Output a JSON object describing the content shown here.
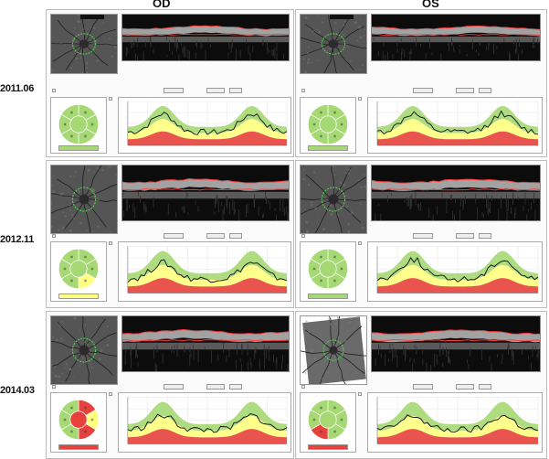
{
  "headers": {
    "od": "OD",
    "os": "OS"
  },
  "dates": [
    "2011.06",
    "2012.11",
    "2014.03"
  ],
  "colors": {
    "normal": "#a6d873",
    "borderline": "#ffff80",
    "outside": "#e8413b",
    "trace": "#111111",
    "panel_border": "#bcbcbc"
  },
  "sessions": [
    {
      "date": "2011.06",
      "od": {
        "classification": "within-normal",
        "grid": [
          "normal",
          "normal",
          "normal",
          "normal",
          "normal",
          "normal",
          "normal"
        ]
      },
      "os": {
        "classification": "within-normal",
        "grid": [
          "normal",
          "normal",
          "normal",
          "normal",
          "normal",
          "normal",
          "normal"
        ]
      }
    },
    {
      "date": "2012.11",
      "od": {
        "classification": "borderline",
        "grid": [
          "normal",
          "normal",
          "borderline",
          "normal",
          "normal",
          "normal",
          "normal"
        ]
      },
      "os": {
        "classification": "within-normal",
        "grid": [
          "normal",
          "normal",
          "normal",
          "normal",
          "normal",
          "normal",
          "normal"
        ]
      }
    },
    {
      "date": "2014.03",
      "od": {
        "classification": "outside-normal",
        "grid": [
          "outside",
          "borderline",
          "outside",
          "normal",
          "normal",
          "normal",
          "outside"
        ]
      },
      "os": {
        "classification": "outside-normal",
        "grid": [
          "normal",
          "normal",
          "normal",
          "outside",
          "normal",
          "normal",
          "normal"
        ]
      }
    }
  ],
  "icons": {
    "fundus": "optic-disc-fundus-image",
    "oct": "oct-bscan-image",
    "grid": "sector-classification-icon",
    "plot": "rnfl-thickness-plot"
  }
}
